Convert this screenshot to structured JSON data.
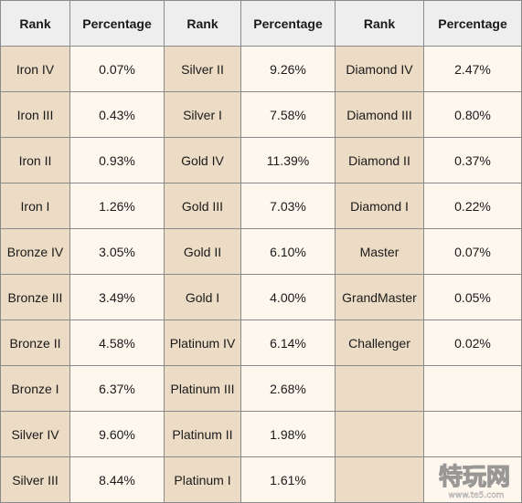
{
  "headers": [
    "Rank",
    "Percentage",
    "Rank",
    "Percentage",
    "Rank",
    "Percentage"
  ],
  "rows": [
    [
      "Iron IV",
      "0.07%",
      "Silver II",
      "9.26%",
      "Diamond IV",
      "2.47%"
    ],
    [
      "Iron III",
      "0.43%",
      "Silver I",
      "7.58%",
      "Diamond III",
      "0.80%"
    ],
    [
      "Iron II",
      "0.93%",
      "Gold IV",
      "11.39%",
      "Diamond II",
      "0.37%"
    ],
    [
      "Iron I",
      "1.26%",
      "Gold III",
      "7.03%",
      "Diamond I",
      "0.22%"
    ],
    [
      "Bronze IV",
      "3.05%",
      "Gold II",
      "6.10%",
      "Master",
      "0.07%"
    ],
    [
      "Bronze III",
      "3.49%",
      "Gold I",
      "4.00%",
      "GrandMaster",
      "0.05%"
    ],
    [
      "Bronze II",
      "4.58%",
      "Platinum IV",
      "6.14%",
      "Challenger",
      "0.02%"
    ],
    [
      "Bronze I",
      "6.37%",
      "Platinum III",
      "2.68%",
      "",
      ""
    ],
    [
      "Silver IV",
      "9.60%",
      "Platinum II",
      "1.98%",
      "",
      ""
    ],
    [
      "Silver III",
      "8.44%",
      "Platinum I",
      "1.61%",
      "",
      ""
    ]
  ],
  "watermark": {
    "logo_text": "特玩网",
    "url_text": "www.te5.com"
  },
  "colors": {
    "rank_cell": "#ecdcc6",
    "percentage_cell": "#fdf7ee",
    "header": "#eeeeee",
    "border": "#8a8a8a"
  }
}
